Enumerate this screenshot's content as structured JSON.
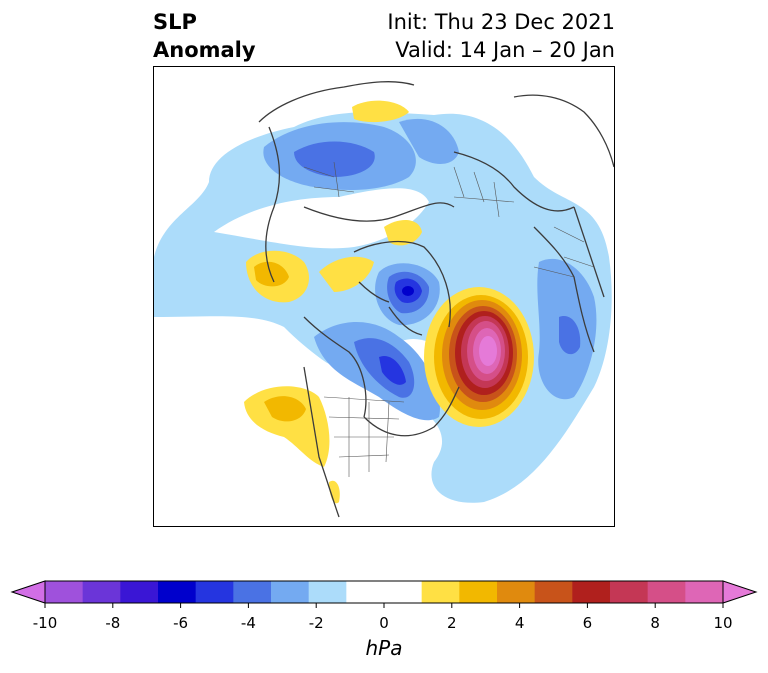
{
  "title": {
    "left_line1": "SLP",
    "left_line2": "Anomaly",
    "right_line1": "Init: Thu 23 Dec 2021",
    "right_line2": "Valid: 14 Jan – 20 Jan"
  },
  "colorbar": {
    "unit": "hPa",
    "ticks": [
      "-10",
      "-8",
      "-6",
      "-4",
      "-2",
      "0",
      "2",
      "4",
      "6",
      "8",
      "10"
    ],
    "levels": [
      -10,
      -9,
      -8,
      -7,
      -6,
      -5,
      -4,
      -3,
      -2,
      -1,
      1,
      2,
      3,
      4,
      5,
      6,
      7,
      8,
      9,
      10
    ],
    "colors": [
      "#d26ee6",
      "#9f51dc",
      "#6b35d8",
      "#3a16d5",
      "#0000cc",
      "#2535e0",
      "#4a72e4",
      "#74aaf1",
      "#acdcfa",
      "#ffffff",
      "#ffffff",
      "#ffe044",
      "#f2b800",
      "#e08a0e",
      "#c8531a",
      "#b0201d",
      "#c43755",
      "#d54f88",
      "#de66b6",
      "#e57ad8"
    ]
  },
  "map": {
    "projection": "north-polar-stereographic",
    "anomaly_features": [
      {
        "name": "negative-anomaly-eurasia",
        "min_hPa": -5
      },
      {
        "name": "negative-anomaly-arctic-center",
        "min_hPa": -6
      },
      {
        "name": "negative-anomaly-hudson-bay",
        "min_hPa": -5
      },
      {
        "name": "positive-anomaly-north-atlantic",
        "max_hPa": 10
      },
      {
        "name": "positive-anomaly-north-pacific",
        "max_hPa": 3
      },
      {
        "name": "positive-anomaly-western-us",
        "max_hPa": 3
      },
      {
        "name": "negative-anomaly-east-asia",
        "min_hPa": -4
      }
    ]
  }
}
